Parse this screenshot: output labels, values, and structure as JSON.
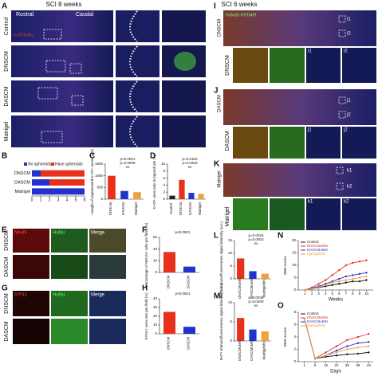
{
  "figure": {
    "panel_labels": [
      "A",
      "B",
      "C",
      "D",
      "E",
      "F",
      "G",
      "H",
      "I",
      "J",
      "K",
      "L",
      "M",
      "N",
      "O"
    ],
    "a": {
      "title": "SCI 8 weeks",
      "rostral": "Rostral",
      "caudal": "Caudal",
      "stain": "5-HT/HuNu",
      "rows": [
        "Control",
        "DNSCM",
        "DASCM",
        "Matrigel"
      ]
    },
    "e": {
      "rows": [
        "DNSCM",
        "DASCM"
      ],
      "channels": [
        "NeuN",
        "HuNu",
        "Merge"
      ]
    },
    "g": {
      "rows": [
        "DNSCM",
        "DASCM"
      ],
      "channels": [
        "SYN1",
        "HuNu",
        "Merge"
      ]
    },
    "i": {
      "title": "SCI 6 weeks",
      "stain": "HuNu/5-HT/DAPI",
      "rows": [
        "DNSCM",
        "DASCM",
        "Matrigel"
      ],
      "insets": [
        [
          "i1",
          "i2"
        ],
        [
          "j1",
          "j2"
        ],
        [
          "k1",
          "k2"
        ]
      ]
    }
  },
  "chart_data": [
    {
      "type": "hbar",
      "categories": [
        "DNSCM",
        "DASCM",
        "Matrigel"
      ],
      "series": [
        {
          "name": "No spheroids",
          "color": "#2233cc",
          "values": [
            1,
            2,
            6
          ]
        },
        {
          "name": "Have spheroids",
          "color": "#e8301c",
          "values": [
            5,
            4,
            0
          ]
        }
      ],
      "xlim": [
        0,
        6
      ],
      "xticks": [
        0,
        1,
        2,
        3,
        4,
        5,
        6
      ]
    },
    {
      "type": "bar",
      "categories": [
        "DNSCM",
        "DASCM",
        "Matrigel"
      ],
      "values": [
        1000,
        350,
        300
      ],
      "colors": [
        "#e8301c",
        "#2233cc",
        "#f0a040"
      ],
      "ylabel": "Length of regenerated 5-HT+ axons (μm)",
      "ylim": [
        0,
        1500
      ],
      "yticks": [
        0,
        500,
        1000,
        1500
      ],
      "annotations": [
        "p<0.0001",
        "p=0.0005",
        "ns"
      ]
    },
    {
      "type": "bar",
      "categories": [
        "Control",
        "DNSCM",
        "DASCM",
        "Matrigel"
      ],
      "values": [
        1,
        5.5,
        1.8,
        1.5
      ],
      "colors": [
        "#222222",
        "#e8301c",
        "#2233cc",
        "#f0a040"
      ],
      "ylabel": "5-HT+ area ratio in injured site (%)",
      "ylim": [
        0,
        10
      ],
      "yticks": [
        0,
        2,
        4,
        6,
        8,
        10
      ],
      "annotations": [
        "p=0.0150",
        "p=0.0253",
        "ns"
      ]
    },
    {
      "type": "bar",
      "categories": [
        "DNSCM",
        "DASCM"
      ],
      "values": [
        35,
        10
      ],
      "colors": [
        "#e8301c",
        "#2233cc"
      ],
      "ylabel": "Percentage of NEUN+ cells per field (%)",
      "ylim": [
        0,
        60
      ],
      "yticks": [
        0,
        20,
        40,
        60
      ],
      "annotations": [
        "p<0.0001"
      ]
    },
    {
      "type": "bar",
      "categories": [
        "DNSCM",
        "DASCM"
      ],
      "values": [
        25,
        8
      ],
      "colors": [
        "#e8301c",
        "#2233cc"
      ],
      "ylabel": "SYN1+ area rate per field (%)",
      "ylim": [
        0,
        40
      ],
      "yticks": [
        0,
        10,
        20,
        30,
        40
      ],
      "annotations": [
        "p<0.0001"
      ]
    },
    {
      "type": "bar",
      "categories": [
        "DNSCMuMN",
        "DASCMuMN",
        "MatrigelMN"
      ],
      "values": [
        8,
        3,
        2
      ],
      "colors": [
        "#e8301c",
        "#2233cc",
        "#f0a040"
      ],
      "ylabel": "5HT+ immunofluorescence signal intensity (a.u.)",
      "ylim": [
        0,
        15
      ],
      "yticks": [
        0,
        5,
        10,
        15
      ],
      "annotations": [
        "p=0.0025",
        "p=0.0003",
        "ns"
      ]
    },
    {
      "type": "bar",
      "categories": [
        "DNSCMuMN",
        "DASCMuMN",
        "MatrigelMN"
      ],
      "values": [
        6,
        3,
        2.5
      ],
      "colors": [
        "#e8301c",
        "#2233cc",
        "#f0a040"
      ],
      "ylabel": "5HT+ immunofluorescence signal intensity (a.u.)",
      "ylim": [
        0,
        10
      ],
      "yticks": [
        0,
        5,
        10
      ],
      "annotations": [
        "p=0.0036",
        "p=0.0209",
        "ns"
      ]
    },
    {
      "type": "line",
      "x": [
        1,
        2,
        3,
        4,
        5,
        6,
        7,
        8,
        9,
        10
      ],
      "xlabel": "Weeks",
      "ylabel": "BBB scores",
      "xlim": [
        0,
        11
      ],
      "ylim": [
        0,
        20
      ],
      "yticks": [
        0,
        5,
        10,
        15,
        20
      ],
      "series": [
        {
          "name": "Control",
          "color": "#111111",
          "values": [
            0,
            0.5,
            1,
            1.5,
            2,
            2.5,
            3,
            3.5,
            3.5,
            4
          ]
        },
        {
          "name": "DNSCMuMN",
          "color": "#e8301c",
          "values": [
            0,
            1,
            2.5,
            4,
            6,
            8,
            10,
            11,
            11.5,
            12
          ]
        },
        {
          "name": "DASCMuMN",
          "color": "#2233cc",
          "values": [
            0,
            0.8,
            1.5,
            2.5,
            3.5,
            4.5,
            5.5,
            6,
            6.5,
            7
          ]
        },
        {
          "name": "MatrigelMN",
          "color": "#f0a040",
          "values": [
            0,
            0.5,
            1.2,
            2,
            3,
            3.5,
            4,
            4.5,
            5,
            5.5
          ]
        }
      ]
    },
    {
      "type": "line",
      "x": [
        1,
        8,
        15,
        22,
        29,
        36,
        43
      ],
      "xlabel": "Days",
      "ylabel": "BMS scores",
      "xlim": [
        -3,
        46
      ],
      "ylim": [
        0,
        8
      ],
      "yticks": [
        0,
        2,
        4,
        6,
        8
      ],
      "series": [
        {
          "name": "Control",
          "color": "#111111",
          "values": [
            7,
            0.5,
            0.8,
            1,
            1.2,
            1.3,
            1.5
          ]
        },
        {
          "name": "DNSCMuMN",
          "color": "#e8301c",
          "values": [
            7,
            0.5,
            1.5,
            2.5,
            3.5,
            4,
            4.5
          ]
        },
        {
          "name": "DASCMuMN",
          "color": "#2233cc",
          "values": [
            7,
            0.5,
            1,
            1.8,
            2.5,
            3,
            3.2
          ]
        },
        {
          "name": "MatrigelMN",
          "color": "#f0a040",
          "values": [
            7,
            0.5,
            1,
            1.5,
            2,
            2.3,
            2.5
          ]
        }
      ]
    }
  ]
}
